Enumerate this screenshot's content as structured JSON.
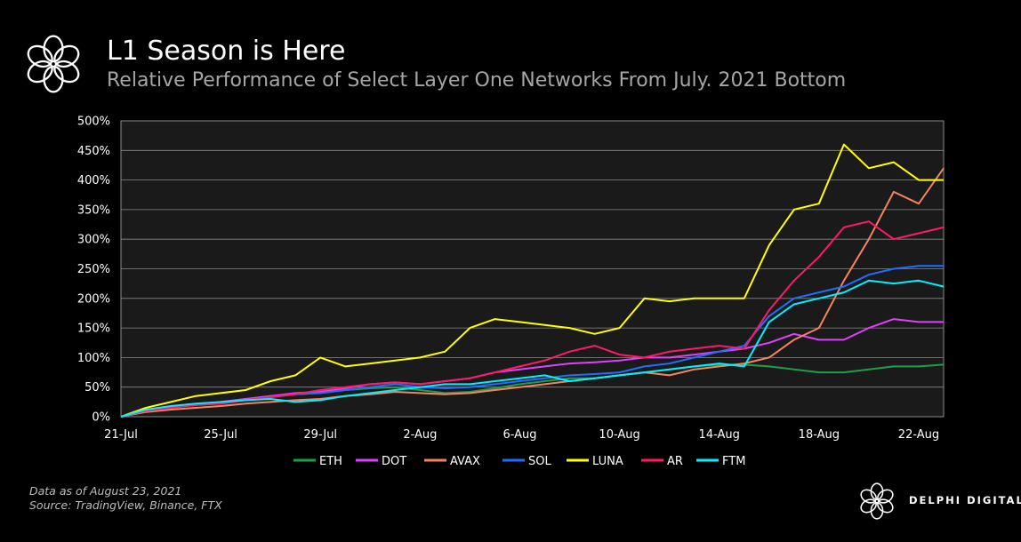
{
  "header": {
    "title": "L1 Season is Here",
    "subtitle": "Relative Performance of Select Layer One Networks From July. 2021 Bottom",
    "logo_icon": "delphi-flower-icon"
  },
  "footer": {
    "data_note": "Data as of August 23, 2021",
    "source": "Source: TradingView, Binance, FTX",
    "brand": "DELPHI DIGITAL"
  },
  "chart_data": {
    "type": "line",
    "title": "",
    "xlabel": "",
    "ylabel": "",
    "ylim": [
      0,
      500
    ],
    "yticks": [
      0,
      50,
      100,
      150,
      200,
      250,
      300,
      350,
      400,
      450,
      500
    ],
    "ytick_labels": [
      "0%",
      "50%",
      "100%",
      "150%",
      "200%",
      "250%",
      "300%",
      "350%",
      "400%",
      "450%",
      "500%"
    ],
    "xticks": [
      "21-Jul",
      "25-Jul",
      "29-Jul",
      "2-Aug",
      "6-Aug",
      "10-Aug",
      "14-Aug",
      "18-Aug",
      "22-Aug"
    ],
    "x": [
      "21-Jul",
      "22-Jul",
      "23-Jul",
      "24-Jul",
      "25-Jul",
      "26-Jul",
      "27-Jul",
      "28-Jul",
      "29-Jul",
      "30-Jul",
      "31-Jul",
      "1-Aug",
      "2-Aug",
      "3-Aug",
      "4-Aug",
      "5-Aug",
      "6-Aug",
      "7-Aug",
      "8-Aug",
      "9-Aug",
      "10-Aug",
      "11-Aug",
      "12-Aug",
      "13-Aug",
      "14-Aug",
      "15-Aug",
      "16-Aug",
      "17-Aug",
      "18-Aug",
      "19-Aug",
      "20-Aug",
      "21-Aug",
      "22-Aug",
      "23-Aug"
    ],
    "grid": true,
    "legend": "bottom",
    "series": [
      {
        "name": "ETH",
        "color": "#1e9e4a",
        "values": [
          0,
          10,
          15,
          20,
          25,
          30,
          35,
          38,
          40,
          45,
          48,
          50,
          45,
          40,
          42,
          48,
          55,
          60,
          65,
          65,
          70,
          75,
          80,
          85,
          88,
          88,
          85,
          80,
          75,
          75,
          80,
          85,
          85,
          88
        ]
      },
      {
        "name": "DOT",
        "color": "#e040fb",
        "values": [
          0,
          10,
          15,
          20,
          25,
          30,
          35,
          40,
          42,
          48,
          55,
          58,
          55,
          60,
          65,
          75,
          80,
          85,
          90,
          92,
          95,
          100,
          100,
          105,
          110,
          115,
          125,
          140,
          130,
          130,
          150,
          165,
          160,
          160
        ]
      },
      {
        "name": "AVAX",
        "color": "#f4845f",
        "values": [
          0,
          8,
          12,
          15,
          18,
          22,
          25,
          28,
          30,
          35,
          38,
          42,
          40,
          38,
          40,
          45,
          50,
          55,
          60,
          65,
          70,
          75,
          70,
          80,
          85,
          90,
          100,
          130,
          150,
          230,
          300,
          380,
          360,
          420
        ]
      },
      {
        "name": "SOL",
        "color": "#1e6fff",
        "values": [
          0,
          10,
          15,
          20,
          22,
          28,
          33,
          38,
          40,
          45,
          50,
          55,
          50,
          48,
          50,
          55,
          60,
          65,
          70,
          72,
          75,
          85,
          90,
          100,
          110,
          120,
          170,
          200,
          210,
          220,
          240,
          250,
          255,
          255
        ]
      },
      {
        "name": "LUNA",
        "color": "#ffff00",
        "values": [
          0,
          15,
          25,
          35,
          40,
          45,
          60,
          70,
          100,
          85,
          90,
          95,
          100,
          110,
          150,
          165,
          160,
          155,
          150,
          140,
          150,
          200,
          195,
          200,
          200,
          200,
          290,
          350,
          360,
          460,
          420,
          430,
          400,
          400
        ]
      },
      {
        "name": "AR",
        "color": "#ff1a66",
        "values": [
          0,
          10,
          15,
          20,
          22,
          28,
          33,
          38,
          45,
          50,
          55,
          58,
          55,
          60,
          65,
          75,
          85,
          95,
          110,
          120,
          105,
          100,
          110,
          115,
          120,
          115,
          180,
          230,
          270,
          320,
          330,
          300,
          310,
          320
        ]
      },
      {
        "name": "FTM",
        "color": "#00f0ff",
        "values": [
          0,
          12,
          18,
          22,
          25,
          28,
          30,
          25,
          28,
          35,
          40,
          45,
          50,
          55,
          55,
          60,
          65,
          70,
          60,
          65,
          70,
          75,
          80,
          85,
          90,
          85,
          160,
          190,
          200,
          210,
          230,
          225,
          230,
          220
        ]
      }
    ]
  }
}
